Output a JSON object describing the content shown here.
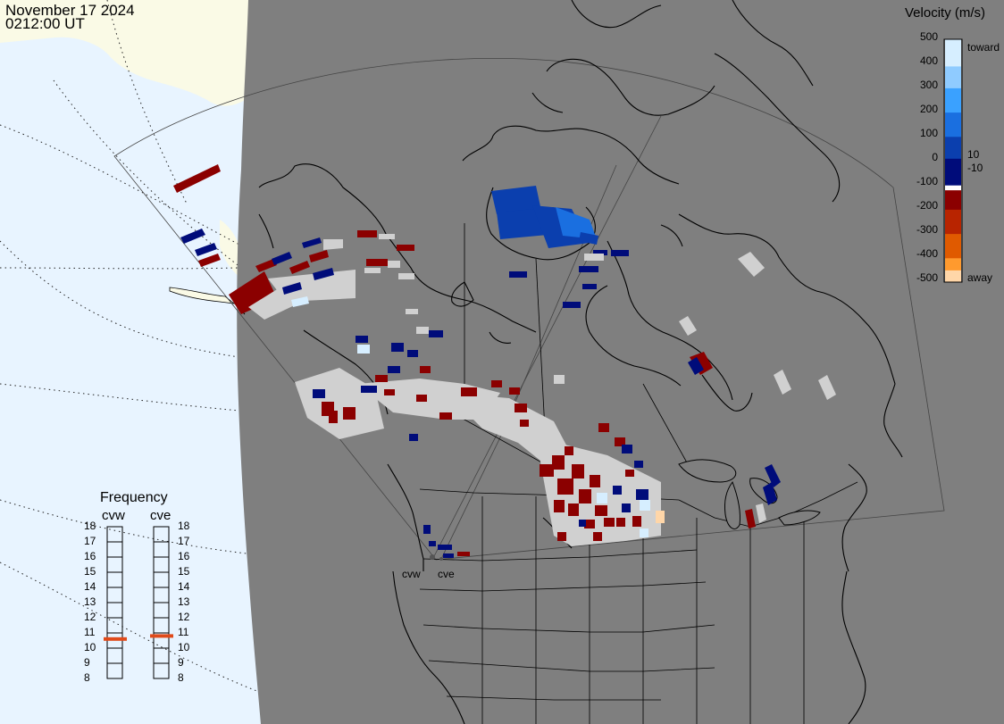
{
  "header": {
    "date": "November 17 2024",
    "time": "0212:00 UT"
  },
  "radars": [
    "cvw",
    "cve"
  ],
  "velocity_scale": {
    "title": "Velocity (m/s)",
    "ticks": [
      "500",
      "400",
      "300",
      "200",
      "100",
      "0",
      "-100",
      "-200",
      "-300",
      "-400",
      "-500"
    ],
    "inner_labels": [
      "10",
      "-10"
    ],
    "toward_label": "toward",
    "away_label": "away",
    "colors": [
      "#d6eeff",
      "#8fcbff",
      "#3aa1ff",
      "#1a6fe0",
      "#0b3fae",
      "#000c7a",
      "#ffffff",
      "#8b0000",
      "#b82400",
      "#e05a00",
      "#ff9a2e",
      "#ffd6a8"
    ]
  },
  "frequency_panel": {
    "title": "Frequency",
    "left_label": "cvw",
    "right_label": "cve",
    "scale": [
      "18",
      "17",
      "16",
      "15",
      "14",
      "13",
      "12",
      "11",
      "10",
      "9",
      "8"
    ],
    "cvw_mhz": 10.6,
    "cve_mhz": 10.8,
    "indicator_color": "#e04a1a"
  },
  "map_colors": {
    "ocean_light": "#e8f4ff",
    "land_light": "#fafae6",
    "dark_globe": "#7f7f7f",
    "low_velocity_grey": "#d0d0d0"
  }
}
